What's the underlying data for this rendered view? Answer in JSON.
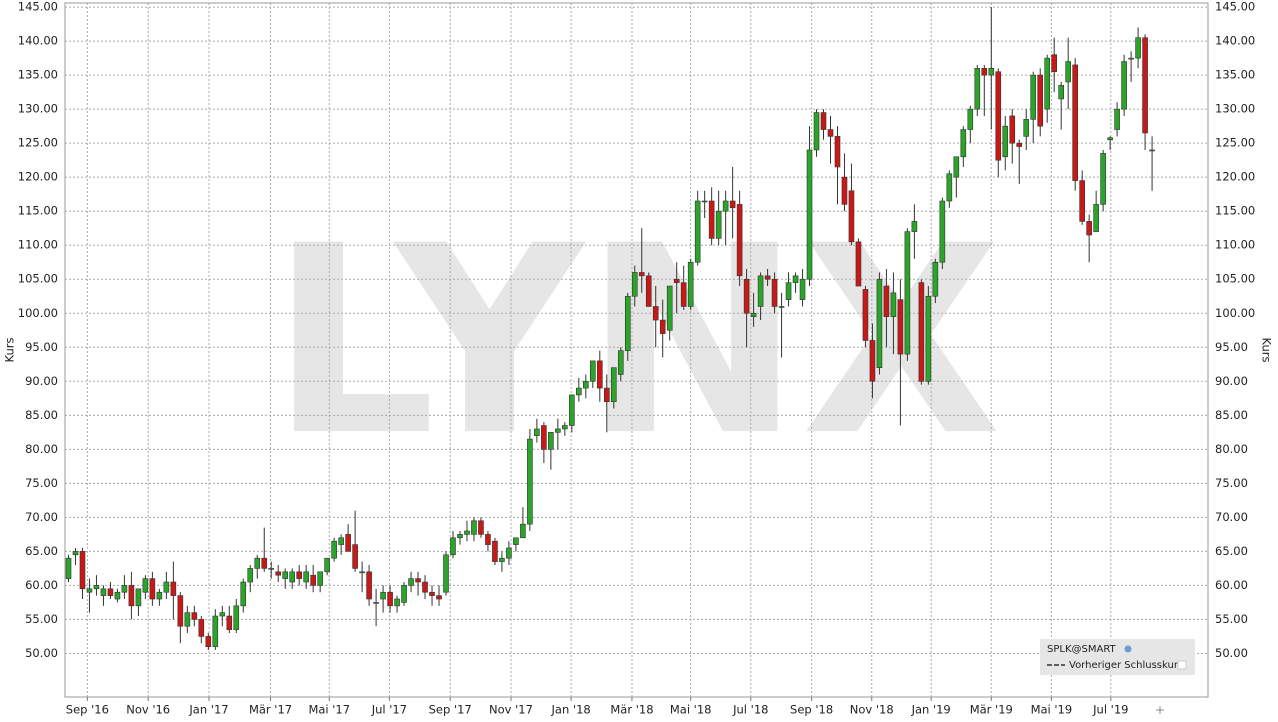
{
  "chart_data": {
    "type": "candlestick",
    "watermark": "LYNX",
    "ylabel": "Kurs",
    "legend": {
      "series": "SPLK@SMART",
      "previous_close": "Vorheriger Schlusskurs",
      "corner": "lower right"
    },
    "up_color": "#2aa52a",
    "down_color": "#c81818",
    "grid": true,
    "xlim": [
      -0.5,
      163
    ],
    "ylim": [
      43.6,
      145.6
    ],
    "xticks": [
      {
        "value": 2.7,
        "label": "Sep '16"
      },
      {
        "value": 11.4,
        "label": "Nov '16"
      },
      {
        "value": 20.1,
        "label": "Jan '17"
      },
      {
        "value": 28.9,
        "label": "Mär '17"
      },
      {
        "value": 37.3,
        "label": "Mai '17"
      },
      {
        "value": 45.9,
        "label": "Jul '17"
      },
      {
        "value": 54.6,
        "label": "Sep '17"
      },
      {
        "value": 63.3,
        "label": "Nov '17"
      },
      {
        "value": 71.9,
        "label": "Jan '18"
      },
      {
        "value": 80.6,
        "label": "Mär '18"
      },
      {
        "value": 89,
        "label": "Mai '18"
      },
      {
        "value": 97.6,
        "label": "Jul '18"
      },
      {
        "value": 106.3,
        "label": "Sep '18"
      },
      {
        "value": 114.9,
        "label": "Nov '18"
      },
      {
        "value": 123.4,
        "label": "Jan '19"
      },
      {
        "value": 132,
        "label": "Mär '19"
      },
      {
        "value": 140.6,
        "label": "Mai '19"
      },
      {
        "value": 149.1,
        "label": "Jul '19"
      }
    ],
    "yticks": [
      {
        "value": 50,
        "label": "50.00"
      },
      {
        "value": 55,
        "label": "55.00"
      },
      {
        "value": 60,
        "label": "60.00"
      },
      {
        "value": 65,
        "label": "65.00"
      },
      {
        "value": 70,
        "label": "70.00"
      },
      {
        "value": 75,
        "label": "75.00"
      },
      {
        "value": 80,
        "label": "80.00"
      },
      {
        "value": 85,
        "label": "85.00"
      },
      {
        "value": 90,
        "label": "90.00"
      },
      {
        "value": 95,
        "label": "95.00"
      },
      {
        "value": 100,
        "label": "100.00"
      },
      {
        "value": 105,
        "label": "105.00"
      },
      {
        "value": 110,
        "label": "110.00"
      },
      {
        "value": 115,
        "label": "115.00"
      },
      {
        "value": 120,
        "label": "120.00"
      },
      {
        "value": 125,
        "label": "125.00"
      },
      {
        "value": 130,
        "label": "130.00"
      },
      {
        "value": 135,
        "label": "135.00"
      },
      {
        "value": 140,
        "label": "140.00"
      },
      {
        "value": 145,
        "label": "145.00"
      }
    ],
    "ohlc": [
      [
        61,
        64.5,
        60.5,
        64
      ],
      [
        64.5,
        65.5,
        63,
        65
      ],
      [
        65,
        65.5,
        58,
        59.5
      ],
      [
        59,
        61,
        56,
        59.5
      ],
      [
        59.5,
        61.5,
        58.5,
        60
      ],
      [
        58.5,
        60,
        57,
        59.5
      ],
      [
        59.5,
        60.5,
        58,
        58.5
      ],
      [
        58,
        59.5,
        57.5,
        59
      ],
      [
        59,
        61.5,
        58,
        60
      ],
      [
        60,
        62,
        55,
        57
      ],
      [
        57,
        59,
        55.5,
        59.5
      ],
      [
        59,
        61.5,
        58,
        61
      ],
      [
        61,
        62,
        57,
        58
      ],
      [
        58,
        59.5,
        57,
        59
      ],
      [
        59,
        62,
        58,
        60.5
      ],
      [
        60.5,
        63.5,
        55,
        58.5
      ],
      [
        58.5,
        59,
        51.5,
        54
      ],
      [
        54,
        57,
        53,
        56
      ],
      [
        56,
        57,
        54,
        55
      ],
      [
        55,
        55.5,
        51.5,
        52.5
      ],
      [
        52.5,
        53,
        50.5,
        51
      ],
      [
        51,
        56.5,
        50.5,
        55.5
      ],
      [
        55.5,
        57,
        54,
        56
      ],
      [
        55.5,
        57,
        53,
        53.5
      ],
      [
        53.5,
        58,
        53,
        57
      ],
      [
        57,
        61,
        56,
        60.5
      ],
      [
        60.5,
        63,
        59,
        62.5
      ],
      [
        62.5,
        64.5,
        61,
        64
      ],
      [
        64,
        68.5,
        62,
        62.5
      ],
      [
        62.5,
        63.5,
        61,
        62.5
      ],
      [
        62,
        63,
        60.5,
        61.5
      ],
      [
        61,
        62.5,
        59.5,
        62
      ],
      [
        60.5,
        62.5,
        59.5,
        62
      ],
      [
        62,
        63,
        60,
        61
      ],
      [
        60.5,
        63,
        59.5,
        62
      ],
      [
        61.5,
        63,
        59,
        60
      ],
      [
        60,
        62,
        59,
        62
      ],
      [
        62,
        64,
        61.5,
        64
      ],
      [
        64,
        67,
        63.5,
        66.5
      ],
      [
        66,
        67.5,
        64.5,
        67
      ],
      [
        67.5,
        69,
        65,
        65
      ],
      [
        66,
        71,
        62,
        62.5
      ],
      [
        62,
        63.5,
        59,
        62
      ],
      [
        62,
        63,
        57,
        58
      ],
      [
        57.5,
        59.5,
        54,
        57.5
      ],
      [
        58,
        60,
        56,
        59
      ],
      [
        59,
        60,
        56,
        57
      ],
      [
        57,
        58.5,
        56,
        58
      ],
      [
        57.5,
        60.5,
        57,
        60
      ],
      [
        60,
        62,
        59,
        61
      ],
      [
        61,
        62,
        58.5,
        60.5
      ],
      [
        60.5,
        61.5,
        58,
        59
      ],
      [
        59,
        60,
        57,
        58.5
      ],
      [
        58.5,
        60,
        57,
        58
      ],
      [
        59,
        65,
        58.5,
        64.5
      ],
      [
        64.5,
        68,
        64,
        67
      ],
      [
        67,
        68,
        66,
        67.5
      ],
      [
        67.5,
        69.5,
        66.5,
        68
      ],
      [
        67.5,
        70,
        66.5,
        69.5
      ],
      [
        69.5,
        70,
        67,
        67.5
      ],
      [
        67.5,
        68,
        65,
        66
      ],
      [
        66.5,
        67,
        63,
        63.5
      ],
      [
        63.5,
        65,
        62,
        64
      ],
      [
        64,
        66.5,
        63,
        65.5
      ],
      [
        66,
        67,
        65,
        67
      ],
      [
        67,
        71.5,
        67,
        69
      ],
      [
        69,
        83,
        68,
        81.5
      ],
      [
        82,
        84.5,
        81,
        83
      ],
      [
        83.5,
        84,
        78,
        80
      ],
      [
        80,
        82.5,
        77,
        82.5
      ],
      [
        82.5,
        84.5,
        80,
        83
      ],
      [
        83,
        84,
        82,
        83.5
      ],
      [
        83.5,
        88,
        82.5,
        88
      ],
      [
        88,
        90.5,
        87,
        89
      ],
      [
        89,
        91,
        87.5,
        90
      ],
      [
        90,
        93,
        89,
        93
      ],
      [
        93,
        94.5,
        87,
        89
      ],
      [
        89,
        91,
        82.5,
        87
      ],
      [
        87,
        92,
        86,
        92
      ],
      [
        91,
        95,
        90,
        94.5
      ],
      [
        94.5,
        103,
        93,
        102.5
      ],
      [
        102.5,
        107,
        101,
        106
      ],
      [
        106,
        112.5,
        103,
        105.5
      ],
      [
        105.5,
        106,
        101,
        101
      ],
      [
        101,
        104,
        95,
        99
      ],
      [
        99,
        102,
        93.5,
        97
      ],
      [
        97.5,
        104,
        96,
        104
      ],
      [
        105,
        107.5,
        100,
        104.5
      ],
      [
        104.5,
        107,
        100.5,
        101
      ],
      [
        101,
        108,
        100.5,
        107.5
      ],
      [
        107.5,
        118,
        107,
        116.5
      ],
      [
        116.5,
        118,
        114,
        116.5
      ],
      [
        116.5,
        118.5,
        110,
        111
      ],
      [
        111,
        118,
        110,
        115
      ],
      [
        115,
        118,
        110,
        116.5
      ],
      [
        116.5,
        121.5,
        111,
        115.5
      ],
      [
        116,
        118,
        104,
        105.5
      ],
      [
        105,
        106.5,
        95,
        100
      ],
      [
        99.5,
        103,
        98,
        100
      ],
      [
        101,
        106,
        99,
        105.5
      ],
      [
        105.5,
        106.5,
        104,
        105
      ],
      [
        105,
        106,
        100,
        101
      ],
      [
        101,
        103,
        93.5,
        101
      ],
      [
        102,
        106,
        101,
        104.5
      ],
      [
        104.5,
        106,
        103,
        105.5
      ],
      [
        102,
        106.5,
        101,
        105
      ],
      [
        105,
        127.5,
        104,
        124
      ],
      [
        124,
        130,
        123,
        129.5
      ],
      [
        129.5,
        130,
        125.5,
        127
      ],
      [
        127,
        129,
        122,
        126
      ],
      [
        126,
        127.5,
        116,
        121.5
      ],
      [
        120,
        123.5,
        115,
        116
      ],
      [
        118,
        122,
        110,
        110.5
      ],
      [
        110.5,
        111,
        104,
        104
      ],
      [
        103.5,
        104,
        95,
        96
      ],
      [
        96,
        98.5,
        87.5,
        90
      ],
      [
        92,
        106,
        91,
        105
      ],
      [
        104,
        106.5,
        95,
        99.5
      ],
      [
        99.5,
        106,
        94,
        103
      ],
      [
        102,
        105,
        83.5,
        94
      ],
      [
        94,
        112.5,
        93,
        112
      ],
      [
        112,
        116,
        108,
        113.5
      ],
      [
        104.5,
        105,
        89.5,
        90
      ],
      [
        90,
        104,
        89.5,
        102.5
      ],
      [
        102.5,
        108,
        101.5,
        107.5
      ],
      [
        107.5,
        117,
        106.5,
        116.5
      ],
      [
        116.5,
        121,
        115.5,
        120.5
      ],
      [
        120,
        123,
        117,
        123
      ],
      [
        123,
        127.5,
        121.5,
        127
      ],
      [
        127,
        130.5,
        125,
        130
      ],
      [
        130,
        136.5,
        129,
        136
      ],
      [
        136,
        136.5,
        129,
        135
      ],
      [
        135,
        145,
        127,
        136
      ],
      [
        135.5,
        136,
        120,
        122.5
      ],
      [
        123,
        129,
        121,
        127.5
      ],
      [
        129,
        130,
        122,
        125
      ],
      [
        125,
        125.5,
        119,
        124.5
      ],
      [
        126,
        130,
        124,
        128.5
      ],
      [
        128.5,
        135.5,
        125,
        135
      ],
      [
        135,
        136,
        126,
        127.5
      ],
      [
        130,
        138,
        128,
        137.5
      ],
      [
        138,
        140.5,
        132.5,
        135.5
      ],
      [
        131.5,
        134,
        127,
        133.5
      ],
      [
        134,
        140.5,
        130,
        137
      ],
      [
        136.5,
        137.5,
        118,
        119.5
      ],
      [
        119.5,
        121,
        113,
        113.5
      ],
      [
        113.5,
        114.5,
        107.5,
        111.5
      ],
      [
        112,
        118,
        112,
        116
      ],
      [
        116,
        124,
        115,
        123.5
      ],
      [
        125.5,
        126,
        124,
        125.8
      ],
      [
        127,
        131,
        126,
        130
      ],
      [
        130,
        138,
        129,
        137
      ],
      [
        137.5,
        138.5,
        134,
        137.5
      ],
      [
        137.5,
        142,
        136,
        140.5
      ],
      [
        140.5,
        141,
        124,
        126.5
      ],
      [
        124,
        126,
        118,
        124
      ]
    ]
  }
}
